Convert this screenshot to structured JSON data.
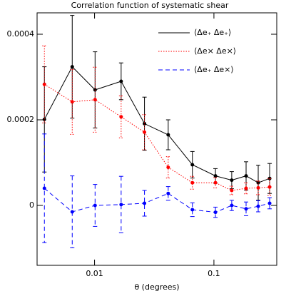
{
  "chart_data": {
    "type": "line",
    "title": "Correlation function of systematic shear",
    "x_label": "θ (degrees)",
    "x_log": true,
    "xlim": [
      0.0033,
      0.336
    ],
    "xticks": [
      0.01,
      0.1
    ],
    "ylim": [
      -0.00014,
      0.00045
    ],
    "yticks": [
      0,
      0.0002,
      0.0004
    ],
    "legend": "upper right",
    "x": [
      0.0038,
      0.0065,
      0.0101,
      0.0167,
      0.0262,
      0.0414,
      0.066,
      0.103,
      0.141,
      0.186,
      0.235,
      0.293
    ],
    "series": [
      {
        "name": "⟨Δe₊ Δe₊⟩",
        "color": "#000000",
        "dash": "solid",
        "values": [
          0.000201,
          0.000324,
          0.00027,
          0.00029,
          0.000191,
          0.000165,
          9.5e-05,
          6.9e-05,
          5.9e-05,
          6.9e-05,
          5.3e-05,
          6.3e-05
        ],
        "errors": [
          0.000123,
          0.00012,
          8.9e-05,
          4.3e-05,
          6.2e-05,
          3.5e-05,
          3.1e-05,
          1.7e-05,
          2e-05,
          3.3e-05,
          4.1e-05,
          3.5e-05
        ]
      },
      {
        "name": "⟨Δe× Δe×⟩",
        "color": "#ff0000",
        "dash": "dotted",
        "values": [
          0.000283,
          0.000242,
          0.000247,
          0.000207,
          0.000171,
          8.9e-05,
          5.3e-05,
          5.3e-05,
          3.5e-05,
          4e-05,
          4.1e-05,
          4.3e-05
        ],
        "errors": [
          9e-05,
          7.6e-05,
          7.6e-05,
          4.9e-05,
          4.1e-05,
          2.5e-05,
          1.5e-05,
          1.2e-05,
          1e-05,
          1.3e-05,
          1.6e-05,
          2e-05
        ]
      },
      {
        "name": "⟨Δe₊ Δe×⟩",
        "color": "#0000ff",
        "dash": "dashed",
        "values": [
          4e-05,
          -1.5e-05,
          0,
          2e-06,
          5e-06,
          2.8e-05,
          -1e-05,
          -1.6e-05,
          0,
          -8e-06,
          -2e-06,
          5e-06
        ],
        "errors": [
          0.000127,
          8.4e-05,
          4.9e-05,
          6.6e-05,
          3e-05,
          1.6e-05,
          1.6e-05,
          1.2e-05,
          1.2e-05,
          1.6e-05,
          1.3e-05,
          1.3e-05
        ]
      }
    ]
  }
}
